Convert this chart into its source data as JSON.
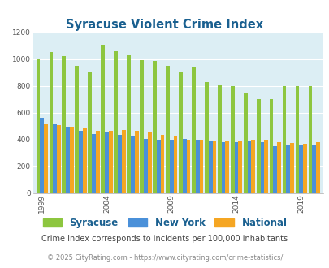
{
  "title": "Syracuse Violent Crime Index",
  "years": [
    1999,
    2000,
    2001,
    2002,
    2003,
    2004,
    2005,
    2006,
    2007,
    2008,
    2009,
    2010,
    2011,
    2012,
    2013,
    2014,
    2015,
    2016,
    2017,
    2018,
    2019,
    2020
  ],
  "syracuse": [
    1000,
    1055,
    1020,
    950,
    900,
    1100,
    1060,
    1030,
    990,
    985,
    950,
    900,
    945,
    830,
    805,
    800,
    750,
    700,
    700,
    800,
    800,
    800
  ],
  "new_york": [
    560,
    510,
    495,
    465,
    440,
    450,
    435,
    420,
    405,
    400,
    400,
    405,
    390,
    385,
    380,
    380,
    385,
    380,
    350,
    360,
    360,
    360
  ],
  "national": [
    510,
    505,
    495,
    490,
    465,
    463,
    470,
    465,
    450,
    435,
    430,
    395,
    390,
    385,
    385,
    385,
    390,
    395,
    380,
    375,
    370,
    380
  ],
  "syracuse_color": "#8dc63f",
  "new_york_color": "#4a90d9",
  "national_color": "#f5a623",
  "bg_color": "#dceef4",
  "ylim": [
    0,
    1200
  ],
  "yticks": [
    0,
    200,
    400,
    600,
    800,
    1000,
    1200
  ],
  "xlabel_ticks": [
    1999,
    2004,
    2009,
    2014,
    2019
  ],
  "legend_labels": [
    "Syracuse",
    "New York",
    "National"
  ],
  "subtitle": "Crime Index corresponds to incidents per 100,000 inhabitants",
  "footer": "© 2025 CityRating.com - https://www.cityrating.com/crime-statistics/",
  "title_color": "#1a6090",
  "subtitle_color": "#444444",
  "footer_color": "#888888"
}
